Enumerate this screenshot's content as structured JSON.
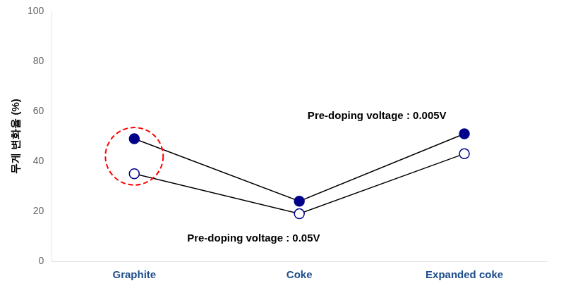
{
  "chart_data": {
    "type": "line",
    "y_label": "무게 변화율 (%)",
    "categories": [
      "Graphite",
      "Coke",
      "Expanded coke"
    ],
    "series": [
      {
        "color": "#00008B",
        "marker": "circle",
        "values": [
          49,
          24,
          51
        ]
      },
      {
        "color": "#00008B",
        "marker": "circle-open",
        "values": [
          35,
          19,
          43
        ]
      }
    ],
    "ylim": [
      0,
      100
    ],
    "yticks": [
      0,
      20,
      40,
      60,
      80,
      100
    ],
    "annotations": [
      "Pre-doping voltage : 0.005V",
      "Pre-doping voltage : 0.05V"
    ],
    "grid": false
  }
}
